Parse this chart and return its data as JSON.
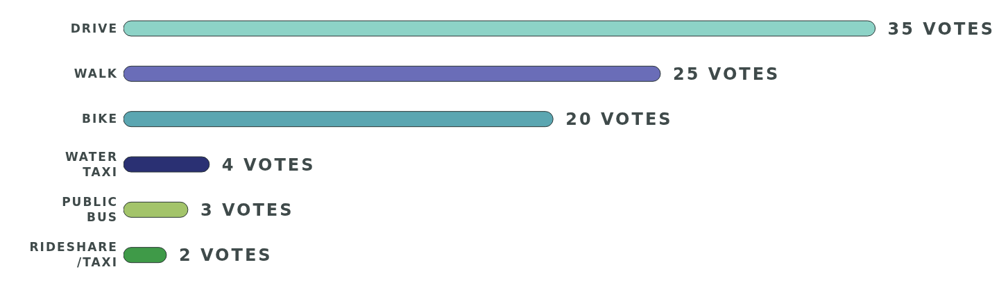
{
  "chart_data": {
    "type": "bar",
    "orientation": "horizontal",
    "categories": [
      "DRIVE",
      "WALK",
      "BIKE",
      "WATER TAXI",
      "PUBLIC BUS",
      "RIDESHARE/TAXI"
    ],
    "values": [
      35,
      25,
      20,
      4,
      3,
      2
    ],
    "colors": [
      "#8dd3c7",
      "#6a6db8",
      "#5ba6b1",
      "#2a3073",
      "#a3c46a",
      "#3f9a48"
    ],
    "value_labels": [
      "35 VOTES",
      "25 VOTES",
      "20 VOTES",
      "4 VOTES",
      "3 VOTES",
      "2 VOTES"
    ],
    "grid": false,
    "legend": false
  }
}
